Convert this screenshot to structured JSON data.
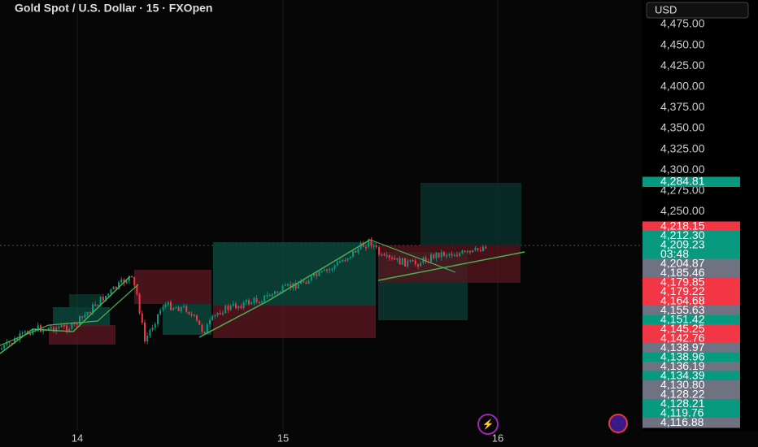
{
  "header": {
    "title": "Gold Spot / U.S. Dollar · 15 · FXOpen",
    "currency": "USD"
  },
  "price_axis": {
    "ticks": [
      "4,475.00",
      "4,450.00",
      "4,425.00",
      "4,400.00",
      "4,375.00",
      "4,350.00",
      "4,325.00",
      "4,300.00",
      "4,275.00",
      "4,250.00"
    ],
    "markers": [
      {
        "label": "4,284.81",
        "kind": "green"
      },
      {
        "label": "4,218.15",
        "kind": "red"
      },
      {
        "label": "4,212.30",
        "kind": "green"
      },
      {
        "label": "4,209.23",
        "kind": "green"
      },
      {
        "label": "03:48",
        "kind": "green"
      },
      {
        "label": "4,204.87",
        "kind": "gray"
      },
      {
        "label": "4,185.46",
        "kind": "gray"
      },
      {
        "label": "4,179.85",
        "kind": "red"
      },
      {
        "label": "4,179.22",
        "kind": "red"
      },
      {
        "label": "4,164.68",
        "kind": "red"
      },
      {
        "label": "4,155.63",
        "kind": "gray"
      },
      {
        "label": "4,151.42",
        "kind": "green"
      },
      {
        "label": "4,145.25",
        "kind": "red"
      },
      {
        "label": "4,142.76",
        "kind": "red"
      },
      {
        "label": "4,138.97",
        "kind": "gray"
      },
      {
        "label": "4,138.96",
        "kind": "green"
      },
      {
        "label": "4,136.19",
        "kind": "gray"
      },
      {
        "label": "4,134.39",
        "kind": "green"
      },
      {
        "label": "4,130.80",
        "kind": "gray"
      },
      {
        "label": "4,128.22",
        "kind": "gray"
      },
      {
        "label": "4,128.21",
        "kind": "green"
      },
      {
        "label": "4,119.76",
        "kind": "green"
      },
      {
        "label": "4,116.88",
        "kind": "gray"
      }
    ]
  },
  "time_axis": {
    "labels": [
      "14",
      "15",
      "16"
    ]
  }
}
